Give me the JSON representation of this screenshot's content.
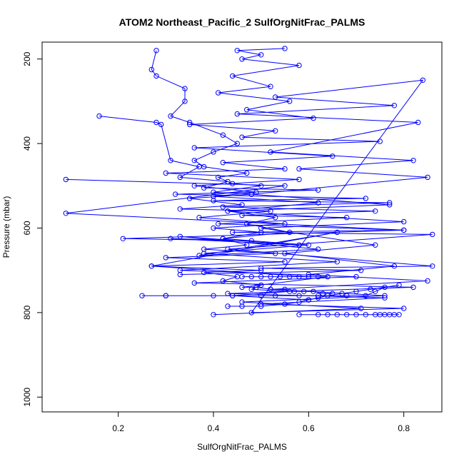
{
  "chart_data": {
    "type": "line",
    "title": "ATOM2 Northeast_Pacific_2 SulfOrgNitFrac_PALMS",
    "xlabel": "SulfOrgNitFrac_PALMS",
    "ylabel": "Pressure (mbar)",
    "xlim": [
      0.04,
      0.88
    ],
    "ylim": [
      1035,
      160
    ],
    "y_reversed": true,
    "x_ticks": [
      "0.2",
      "0.4",
      "0.6",
      "0.8"
    ],
    "y_ticks": [
      "200",
      "400",
      "600",
      "800",
      "1000"
    ],
    "grid": false,
    "legend": "none",
    "colors": {
      "series": "#0000ff"
    },
    "series": [
      {
        "x": [
          0.55,
          0.45,
          0.5,
          0.46,
          0.58,
          0.44,
          0.52,
          0.41,
          0.56,
          0.47,
          0.61,
          0.35,
          0.53,
          0.46,
          0.75,
          0.36,
          0.65,
          0.42,
          0.55,
          0.3,
          0.58,
          0.36,
          0.49,
          0.4,
          0.62,
          0.43,
          0.53,
          0.47,
          0.56,
          0.42,
          0.6,
          0.38,
          0.66,
          0.33,
          0.7,
          0.36,
          0.82,
          0.43,
          0.76,
          0.5,
          0.8,
          0.48,
          0.84,
          0.53,
          0.78,
          0.45,
          0.83,
          0.52,
          0.82,
          0.58,
          0.85,
          0.48,
          0.77,
          0.43,
          0.8,
          0.5,
          0.74,
          0.55,
          0.78,
          0.6,
          0.85,
          0.52,
          0.76,
          0.46,
          0.71,
          0.4
        ],
        "y": [
          175,
          180,
          190,
          200,
          215,
          240,
          265,
          280,
          300,
          320,
          340,
          355,
          370,
          385,
          395,
          410,
          430,
          445,
          460,
          470,
          485,
          500,
          515,
          525,
          540,
          560,
          575,
          590,
          610,
          625,
          640,
          660,
          680,
          700,
          715,
          730,
          740,
          755,
          765,
          780,
          790,
          800,
          250,
          290,
          310,
          330,
          350,
          420,
          440,
          460,
          480,
          520,
          545,
          560,
          585,
          600,
          640,
          660,
          690,
          710,
          725,
          745,
          760,
          775,
          790,
          805
        ]
      },
      {
        "x": [
          0.28,
          0.27,
          0.28,
          0.34,
          0.34,
          0.31,
          0.35,
          0.42,
          0.45,
          0.4,
          0.36,
          0.38,
          0.47,
          0.41,
          0.44,
          0.5,
          0.4,
          0.48,
          0.35,
          0.46,
          0.33,
          0.52,
          0.37,
          0.55,
          0.4,
          0.5,
          0.42,
          0.47,
          0.38,
          0.53,
          0.3,
          0.55,
          0.27,
          0.5,
          0.38,
          0.45,
          0.42,
          0.5,
          0.48,
          0.56,
          0.44,
          0.6
        ],
        "y": [
          180,
          225,
          240,
          270,
          300,
          335,
          350,
          380,
          400,
          420,
          440,
          455,
          470,
          480,
          495,
          500,
          515,
          520,
          530,
          545,
          555,
          560,
          575,
          590,
          600,
          610,
          625,
          640,
          650,
          660,
          670,
          680,
          690,
          700,
          705,
          715,
          725,
          735,
          745,
          750,
          760,
          770
        ]
      },
      {
        "x": [
          0.16,
          0.28,
          0.29,
          0.31,
          0.37,
          0.33,
          0.43,
          0.38,
          0.62,
          0.32,
          0.72,
          0.4,
          0.77,
          0.42,
          0.74,
          0.46,
          0.68,
          0.41,
          0.8,
          0.44,
          0.86,
          0.43,
          0.86,
          0.5,
          0.71,
          0.33
        ],
        "y": [
          335,
          350,
          355,
          440,
          455,
          480,
          490,
          505,
          510,
          520,
          530,
          535,
          540,
          550,
          560,
          570,
          575,
          590,
          605,
          610,
          615,
          650,
          690,
          695,
          700,
          710
        ]
      },
      {
        "x": [
          0.09,
          0.55,
          0.09,
          0.8,
          0.21,
          0.48,
          0.31,
          0.58,
          0.33,
          0.62,
          0.37,
          0.66,
          0.27,
          0.6
        ],
        "y": [
          485,
          500,
          565,
          605,
          625,
          630,
          625,
          640,
          620,
          650,
          665,
          610,
          690,
          715
        ]
      },
      {
        "x": [
          0.25,
          0.3,
          0.3,
          0.4,
          0.44,
          0.5,
          0.53,
          0.58,
          0.62,
          0.68,
          0.72,
          0.74,
          0.76,
          0.79,
          0.73,
          0.7,
          0.67,
          0.64,
          0.62,
          0.6,
          0.58,
          0.55,
          0.5,
          0.46,
          0.43
        ],
        "y": [
          760,
          760,
          760,
          760,
          760,
          760,
          760,
          760,
          760,
          760,
          760,
          750,
          740,
          735,
          745,
          750,
          755,
          760,
          765,
          770,
          775,
          780,
          785,
          785,
          785
        ]
      },
      {
        "x": [
          0.58,
          0.62,
          0.64,
          0.66,
          0.68,
          0.7,
          0.72,
          0.74,
          0.75,
          0.76,
          0.77,
          0.78,
          0.79
        ],
        "y": [
          805,
          805,
          805,
          805,
          805,
          805,
          805,
          805,
          805,
          805,
          805,
          805,
          805
        ]
      },
      {
        "x": [
          0.46,
          0.48,
          0.5,
          0.52,
          0.54,
          0.56,
          0.58,
          0.6,
          0.62,
          0.64,
          0.46,
          0.49,
          0.52,
          0.55,
          0.57,
          0.59,
          0.61,
          0.63,
          0.65
        ],
        "y": [
          715,
          715,
          715,
          715,
          715,
          715,
          715,
          715,
          715,
          715,
          740,
          740,
          745,
          745,
          750,
          750,
          750,
          755,
          755
        ]
      }
    ]
  }
}
